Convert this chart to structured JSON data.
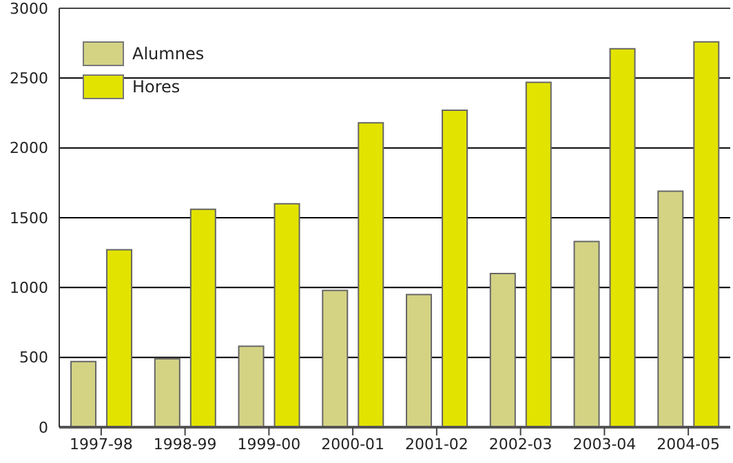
{
  "chart_data": {
    "type": "bar",
    "categories": [
      "1997-98",
      "1998-99",
      "1999-00",
      "2000-01",
      "2001-02",
      "2002-03",
      "2003-04",
      "2004-05"
    ],
    "series": [
      {
        "name": "Alumnes",
        "color": "#d4d384",
        "values": [
          470,
          490,
          580,
          980,
          950,
          1100,
          1330,
          1690
        ]
      },
      {
        "name": "Hores",
        "color": "#e3e300",
        "values": [
          1270,
          1560,
          1600,
          2180,
          2270,
          2470,
          2710,
          2760
        ]
      }
    ],
    "ylim": [
      0,
      3000
    ],
    "yticks": [
      0,
      500,
      1000,
      1500,
      2000,
      2500,
      3000
    ],
    "grid": "y",
    "legend": "top left"
  }
}
